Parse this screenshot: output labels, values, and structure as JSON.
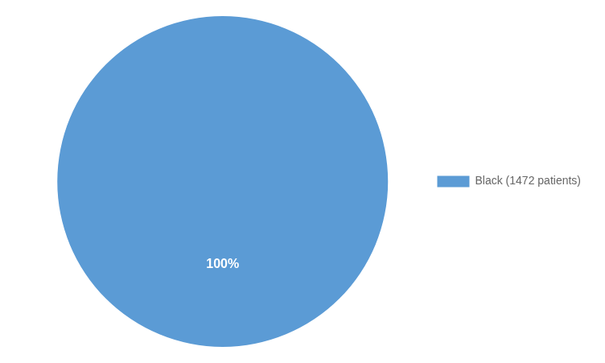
{
  "chart_data": {
    "type": "pie",
    "categories": [
      "Black (1472 patients)"
    ],
    "values": [
      100
    ],
    "value_labels": [
      "100%"
    ],
    "colors": [
      "#5B9BD5"
    ],
    "data_labels": true,
    "legend": "right"
  }
}
